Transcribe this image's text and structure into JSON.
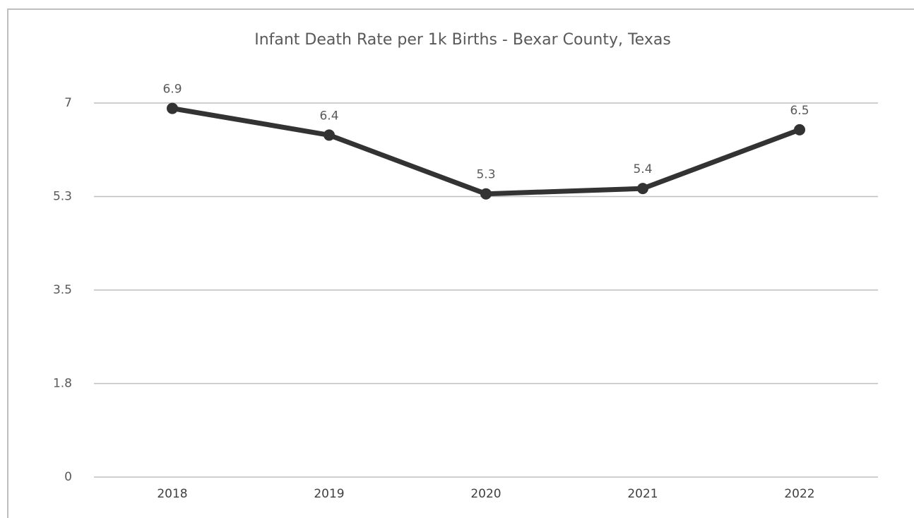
{
  "chart_data": {
    "type": "line",
    "title": "Infant Death Rate per 1k Births - Bexar County, Texas",
    "categories": [
      "2018",
      "2019",
      "2020",
      "2021",
      "2022"
    ],
    "series": [
      {
        "name": "Infant Death Rate",
        "color": "#333333",
        "values": [
          6.9,
          6.4,
          5.3,
          5.4,
          6.5
        ]
      }
    ],
    "ylim": [
      0,
      7
    ],
    "yticks": [
      0,
      {
        "value": 1.75,
        "label": "1.8"
      },
      3.5,
      {
        "value": 5.25,
        "label": "5.3"
      },
      7
    ],
    "grid": true
  }
}
